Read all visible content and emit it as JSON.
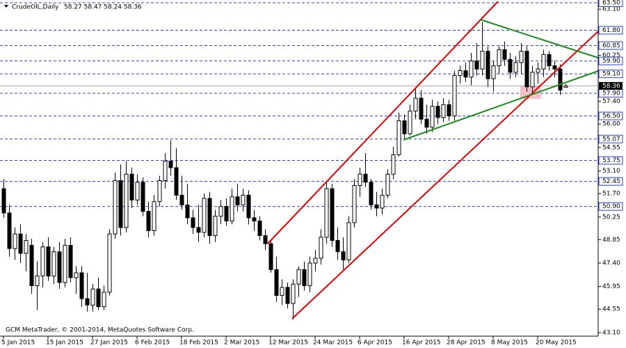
{
  "chart_data": {
    "type": "candlestick",
    "title": "CrudeOIL,Daily",
    "subtitle": "58.27 58.47 58.24 58.36",
    "footer": "GCM MetaTrader, © 2001-2014, MetaQuotes Software Corp.",
    "categories": [
      "5 Jan 2015",
      null,
      null,
      null,
      null,
      null,
      null,
      null,
      "15 Jan 2015",
      null,
      null,
      null,
      null,
      null,
      null,
      null,
      "27 Jan 2015",
      null,
      null,
      null,
      null,
      null,
      null,
      null,
      "6 Feb 2015",
      null,
      null,
      null,
      null,
      null,
      null,
      null,
      "18 Feb 2015",
      null,
      null,
      null,
      null,
      null,
      null,
      null,
      "2 Mar 2015",
      null,
      null,
      null,
      null,
      null,
      null,
      null,
      "12 Mar 2015",
      null,
      null,
      null,
      null,
      null,
      null,
      null,
      "24 Mar 2015",
      null,
      null,
      null,
      null,
      null,
      null,
      null,
      "6 Apr 2015",
      null,
      null,
      null,
      null,
      null,
      null,
      null,
      "16 Apr 2015",
      null,
      null,
      null,
      null,
      null,
      null,
      null,
      "28 Apr 2015",
      null,
      null,
      null,
      null,
      null,
      null,
      null,
      "8 May 2015",
      null,
      null,
      null,
      null,
      null,
      null,
      null,
      "20 May 2015",
      null,
      null,
      null,
      null,
      null
    ],
    "open": [
      52.0,
      50.5,
      48.3,
      49.2,
      48.0,
      48.5,
      46.0,
      46.6,
      48.4,
      46.6,
      48.1,
      46.2,
      48.5,
      46.5,
      46.8,
      45.2,
      44.8,
      45.8,
      44.7,
      45.6,
      49.2,
      52.5,
      49.6,
      52.9,
      51.3,
      52.4,
      50.6,
      49.4,
      51.2,
      52.5,
      53.7,
      53.3,
      51.6,
      51.0,
      50.2,
      49.6,
      49.3,
      51.4,
      49.1,
      50.3,
      50.9,
      50.0,
      51.5,
      51.0,
      51.6,
      50.2,
      50.0,
      49.1,
      48.6,
      47.0,
      45.4,
      45.9,
      44.9,
      46.1,
      47.0,
      46.0,
      47.4,
      47.7,
      49.0,
      52.0,
      48.8,
      48.1,
      47.6,
      49.9,
      52.2,
      52.9,
      52.4,
      51.0,
      50.8,
      51.6,
      52.9,
      54.1,
      56.2,
      55.4,
      56.8,
      57.6,
      56.3,
      55.8,
      57.1,
      56.4,
      57.2,
      56.5,
      59.0,
      59.3,
      58.9,
      59.9,
      59.4,
      60.5,
      58.8,
      59.6,
      60.6,
      60.0,
      59.2,
      59.8,
      60.5,
      58.3,
      59.2,
      59.4,
      60.3,
      59.6,
      59.4,
      58.27
    ],
    "high": [
      52.6,
      51.0,
      49.6,
      49.8,
      49.2,
      48.9,
      47.5,
      48.7,
      49.0,
      48.4,
      48.7,
      48.9,
      49.0,
      47.2,
      47.2,
      46.8,
      46.1,
      46.5,
      46.0,
      49.5,
      53.0,
      53.5,
      53.7,
      53.3,
      52.9,
      52.7,
      51.2,
      51.6,
      52.8,
      54.2,
      55.0,
      54.5,
      52.8,
      52.3,
      50.7,
      51.0,
      51.7,
      51.8,
      50.7,
      51.3,
      51.4,
      52.0,
      52.3,
      52.0,
      51.9,
      50.7,
      50.3,
      49.5,
      48.8,
      47.8,
      46.4,
      46.2,
      46.4,
      47.2,
      47.5,
      47.8,
      48.2,
      49.5,
      52.4,
      52.3,
      49.6,
      49.0,
      50.3,
      52.6,
      53.3,
      54.2,
      52.6,
      51.8,
      52.0,
      53.2,
      54.6,
      56.7,
      56.6,
      57.2,
      58.2,
      58.1,
      57.2,
      57.5,
      57.4,
      57.6,
      57.5,
      59.3,
      59.6,
      59.8,
      60.4,
      61.0,
      62.3,
      60.8,
      59.9,
      60.8,
      61.1,
      60.4,
      60.2,
      61.0,
      60.8,
      59.6,
      59.8,
      60.6,
      60.5,
      59.9,
      59.7,
      58.47
    ],
    "low": [
      50.2,
      47.8,
      47.6,
      47.4,
      46.9,
      45.5,
      44.5,
      45.9,
      46.3,
      46.1,
      45.8,
      45.9,
      46.2,
      45.5,
      44.7,
      44.4,
      44.4,
      44.5,
      44.5,
      45.4,
      48.9,
      49.1,
      49.3,
      50.8,
      51.0,
      50.3,
      49.0,
      49.1,
      50.9,
      52.0,
      52.8,
      51.3,
      50.7,
      49.8,
      49.2,
      48.7,
      49.0,
      48.6,
      48.7,
      49.8,
      49.7,
      49.8,
      50.6,
      50.6,
      49.8,
      49.4,
      48.8,
      48.2,
      46.8,
      45.0,
      44.8,
      44.6,
      43.9,
      45.3,
      45.7,
      45.6,
      46.9,
      47.3,
      48.6,
      48.4,
      47.6,
      47.0,
      47.4,
      49.6,
      51.5,
      52.1,
      50.7,
      50.3,
      50.4,
      51.4,
      52.6,
      54.0,
      55.0,
      55.3,
      56.3,
      56.0,
      55.4,
      55.5,
      56.0,
      56.1,
      56.2,
      56.2,
      58.5,
      58.6,
      58.4,
      59.0,
      59.0,
      58.3,
      58.0,
      59.1,
      59.6,
      58.8,
      58.9,
      59.1,
      58.0,
      57.9,
      58.5,
      58.9,
      59.3,
      58.9,
      57.8,
      58.24
    ],
    "close": [
      50.5,
      48.3,
      49.2,
      48.0,
      48.8,
      46.0,
      46.6,
      48.4,
      46.6,
      48.1,
      46.2,
      48.5,
      46.5,
      46.8,
      45.2,
      44.8,
      45.8,
      44.7,
      45.6,
      49.2,
      52.5,
      49.6,
      52.9,
      51.3,
      52.4,
      50.6,
      49.4,
      51.2,
      52.5,
      53.7,
      53.3,
      51.6,
      51.0,
      50.2,
      49.6,
      49.3,
      51.4,
      49.1,
      50.3,
      50.9,
      50.0,
      51.5,
      51.0,
      51.6,
      50.2,
      50.0,
      49.1,
      48.6,
      47.0,
      45.4,
      45.9,
      44.9,
      46.1,
      47.0,
      46.0,
      47.4,
      47.7,
      49.0,
      52.0,
      48.8,
      48.1,
      47.6,
      49.9,
      52.2,
      52.9,
      52.4,
      51.0,
      50.8,
      51.6,
      52.9,
      54.1,
      56.2,
      55.4,
      56.8,
      57.6,
      56.3,
      55.8,
      57.1,
      56.4,
      57.2,
      56.5,
      59.0,
      59.3,
      58.9,
      59.9,
      59.4,
      60.5,
      58.8,
      59.6,
      60.6,
      60.0,
      59.2,
      59.8,
      60.5,
      58.3,
      59.2,
      59.4,
      60.3,
      59.6,
      59.4,
      58.1,
      58.36
    ],
    "ylim": [
      42.88,
      63.67
    ],
    "yticks": [
      {
        "value": 63.1,
        "label": "63.10"
      },
      {
        "value": 60.25,
        "label": "60.25"
      },
      {
        "value": 57.4,
        "label": "57.40"
      },
      {
        "value": 56,
        "label": "56.00"
      },
      {
        "value": 54.55,
        "label": "54.55"
      },
      {
        "value": 53.1,
        "label": "53.10"
      },
      {
        "value": 51.7,
        "label": "51.70"
      },
      {
        "value": 50.25,
        "label": "50.25"
      },
      {
        "value": 48.85,
        "label": "48.85"
      },
      {
        "value": 47.4,
        "label": "47.40"
      },
      {
        "value": 45.95,
        "label": "45.95"
      },
      {
        "value": 44.55,
        "label": "44.55"
      },
      {
        "value": 43.1,
        "label": "43.10"
      }
    ],
    "price_levels": [
      {
        "value": 63.5,
        "label": "63.50"
      },
      {
        "value": 61.8,
        "label": "61.80"
      },
      {
        "value": 60.85,
        "label": "60.85"
      },
      {
        "value": 59.9,
        "label": "59.90"
      },
      {
        "value": 59.1,
        "label": "59.10"
      },
      {
        "value": 57.9,
        "label": "57.90"
      },
      {
        "value": 56.5,
        "label": "56.50"
      },
      {
        "value": 55.07,
        "label": "55.07"
      },
      {
        "value": 53.75,
        "label": "53.75"
      },
      {
        "value": 52.45,
        "label": "52.45"
      },
      {
        "value": 50.9,
        "label": "50.90"
      }
    ],
    "current_price": {
      "value": 58.36,
      "label": "58.36"
    },
    "level_color": "#2a3fd6",
    "candle_color": "#000000"
  }
}
